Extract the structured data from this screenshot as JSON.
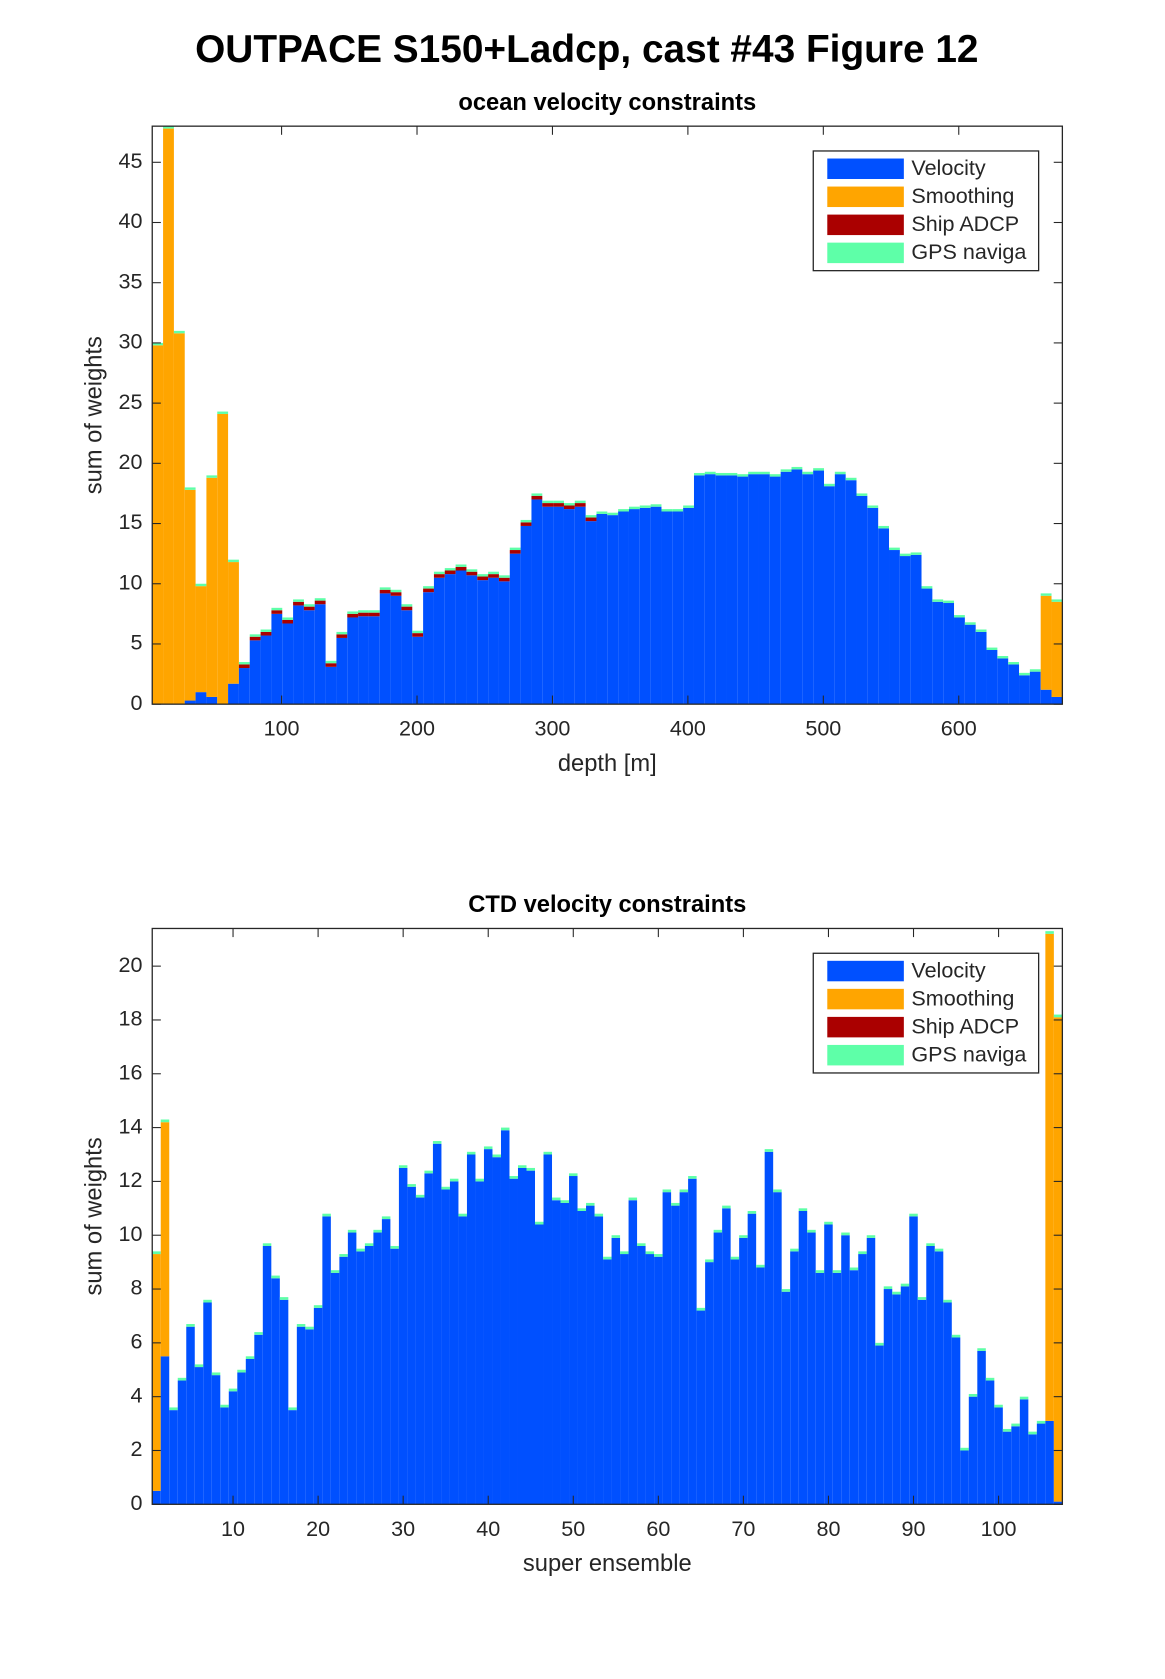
{
  "title": "OUTPACE S150+Ladcp, cast #43  Figure 12",
  "chart_data": [
    {
      "type": "stacked_bar",
      "title": "ocean velocity constraints",
      "xlabel": "depth [m]",
      "ylabel": "sum of weights",
      "legend": "northeast",
      "xlim": [
        4.5,
        676.5
      ],
      "xticks": [
        100,
        200,
        300,
        400,
        500,
        600
      ],
      "ylim": [
        0,
        48
      ],
      "yticks": [
        0,
        5,
        10,
        15,
        20,
        25,
        30,
        35,
        40,
        45
      ],
      "x": [
        8.5,
        16.5,
        24.5,
        32.5,
        40.5,
        48.5,
        56.5,
        64.5,
        72.5,
        80.5,
        88.5,
        96.5,
        104.5,
        112.5,
        120.5,
        128.5,
        136.5,
        144.5,
        152.5,
        160.5,
        168.5,
        176.5,
        184.5,
        192.5,
        200.5,
        208.5,
        216.5,
        224.5,
        232.5,
        240.5,
        248.5,
        256.5,
        264.5,
        272.5,
        280.5,
        288.5,
        296.5,
        304.5,
        312.5,
        320.5,
        328.5,
        336.5,
        344.5,
        352.5,
        360.5,
        368.5,
        376.5,
        384.5,
        392.5,
        400.5,
        408.5,
        416.5,
        424.5,
        432.5,
        440.5,
        448.5,
        456.5,
        464.5,
        472.5,
        480.5,
        488.5,
        496.5,
        504.5,
        512.5,
        520.5,
        528.5,
        536.5,
        544.5,
        552.5,
        560.5,
        568.5,
        576.5,
        584.5,
        592.5,
        600.5,
        608.5,
        616.5,
        624.5,
        632.5,
        640.5,
        648.5,
        656.5,
        664.5,
        672.5
      ],
      "series": [
        {
          "name": "Velocity",
          "color": "#0050ff",
          "values": [
            0,
            0,
            0,
            0.3,
            1.0,
            0.6,
            0,
            1.7,
            3.0,
            5.3,
            5.7,
            7.5,
            6.7,
            8.2,
            7.8,
            8.3,
            3.1,
            5.5,
            7.2,
            7.3,
            7.3,
            9.2,
            9.0,
            7.8,
            5.6,
            9.3,
            10.5,
            10.8,
            11.1,
            10.7,
            10.3,
            10.5,
            10.2,
            12.5,
            14.8,
            17.0,
            16.4,
            16.4,
            16.2,
            16.4,
            15.2,
            15.8,
            15.7,
            16.0,
            16.2,
            16.3,
            16.4,
            16.0,
            16.0,
            16.3,
            19.0,
            19.1,
            19.0,
            19.0,
            18.9,
            19.1,
            19.1,
            18.9,
            19.3,
            19.5,
            19.1,
            19.4,
            18.1,
            19.1,
            18.6,
            17.3,
            16.3,
            14.6,
            12.8,
            12.3,
            12.4,
            9.6,
            8.5,
            8.4,
            7.2,
            6.6,
            6.0,
            4.5,
            3.8,
            3.3,
            2.4,
            2.7,
            1.2,
            0.6
          ]
        },
        {
          "name": "Smoothing",
          "color": "#ffa500",
          "values": [
            29.8,
            47.8,
            30.8,
            17.5,
            8.8,
            18.2,
            24.1,
            10.1,
            0,
            0,
            0,
            0,
            0,
            0,
            0,
            0,
            0,
            0,
            0,
            0,
            0,
            0,
            0,
            0,
            0,
            0,
            0,
            0,
            0,
            0,
            0,
            0,
            0,
            0,
            0,
            0,
            0,
            0,
            0,
            0,
            0,
            0,
            0,
            0,
            0,
            0,
            0,
            0,
            0,
            0,
            0,
            0,
            0,
            0,
            0,
            0,
            0,
            0,
            0,
            0,
            0,
            0,
            0,
            0,
            0,
            0,
            0,
            0,
            0,
            0,
            0,
            0,
            0,
            0,
            0,
            0,
            0,
            0,
            0,
            0,
            0,
            0,
            7.8,
            7.9
          ]
        },
        {
          "name": "Ship ADCP",
          "color": "#aa0000",
          "values": [
            0,
            0,
            0,
            0,
            0,
            0,
            0,
            0,
            0.3,
            0.3,
            0.3,
            0.3,
            0.3,
            0.3,
            0.3,
            0.3,
            0.3,
            0.3,
            0.3,
            0.3,
            0.3,
            0.3,
            0.3,
            0.3,
            0.3,
            0.3,
            0.3,
            0.3,
            0.3,
            0.3,
            0.3,
            0.3,
            0.3,
            0.3,
            0.3,
            0.3,
            0.3,
            0.3,
            0.3,
            0.3,
            0.3,
            0,
            0,
            0,
            0,
            0,
            0,
            0,
            0,
            0,
            0,
            0,
            0,
            0,
            0,
            0,
            0,
            0,
            0,
            0,
            0,
            0,
            0,
            0,
            0,
            0,
            0,
            0,
            0,
            0,
            0,
            0,
            0,
            0,
            0,
            0,
            0,
            0,
            0,
            0,
            0,
            0,
            0,
            0
          ]
        },
        {
          "name": "GPS naviga",
          "color": "#5effa8",
          "values": [
            0.2,
            0.2,
            0.2,
            0.2,
            0.2,
            0.2,
            0.2,
            0.2,
            0.2,
            0.2,
            0.2,
            0.2,
            0.2,
            0.2,
            0.2,
            0.2,
            0.2,
            0.2,
            0.2,
            0.2,
            0.2,
            0.2,
            0.2,
            0.2,
            0.2,
            0.2,
            0.2,
            0.2,
            0.2,
            0.2,
            0.2,
            0.2,
            0.2,
            0.2,
            0.2,
            0.2,
            0.2,
            0.2,
            0.2,
            0.2,
            0.2,
            0.2,
            0.2,
            0.2,
            0.2,
            0.2,
            0.2,
            0.2,
            0.2,
            0.2,
            0.2,
            0.2,
            0.2,
            0.2,
            0.2,
            0.2,
            0.2,
            0.2,
            0.2,
            0.2,
            0.2,
            0.2,
            0.2,
            0.2,
            0.2,
            0.2,
            0.2,
            0.2,
            0.2,
            0.2,
            0.2,
            0.2,
            0.2,
            0.2,
            0.2,
            0.2,
            0.2,
            0.2,
            0.2,
            0.2,
            0.2,
            0.2,
            0.2,
            0.2
          ]
        }
      ]
    },
    {
      "type": "stacked_bar",
      "title": "CTD velocity constraints",
      "xlabel": "super ensemble",
      "ylabel": "sum of weights",
      "legend": "northeast",
      "xlim": [
        0.5,
        107.5
      ],
      "xticks": [
        10,
        20,
        30,
        40,
        50,
        60,
        70,
        80,
        90,
        100
      ],
      "ylim": [
        0,
        21.4
      ],
      "yticks": [
        0,
        2,
        4,
        6,
        8,
        10,
        12,
        14,
        16,
        18,
        20
      ],
      "x": [
        1,
        2,
        3,
        4,
        5,
        6,
        7,
        8,
        9,
        10,
        11,
        12,
        13,
        14,
        15,
        16,
        17,
        18,
        19,
        20,
        21,
        22,
        23,
        24,
        25,
        26,
        27,
        28,
        29,
        30,
        31,
        32,
        33,
        34,
        35,
        36,
        37,
        38,
        39,
        40,
        41,
        42,
        43,
        44,
        45,
        46,
        47,
        48,
        49,
        50,
        51,
        52,
        53,
        54,
        55,
        56,
        57,
        58,
        59,
        60,
        61,
        62,
        63,
        64,
        65,
        66,
        67,
        68,
        69,
        70,
        71,
        72,
        73,
        74,
        75,
        76,
        77,
        78,
        79,
        80,
        81,
        82,
        83,
        84,
        85,
        86,
        87,
        88,
        89,
        90,
        91,
        92,
        93,
        94,
        95,
        96,
        97,
        98,
        99,
        100,
        101,
        102,
        103,
        104,
        105,
        106,
        107
      ],
      "series": [
        {
          "name": "Velocity",
          "color": "#0050ff",
          "values": [
            0.5,
            5.5,
            3.5,
            4.6,
            6.6,
            5.1,
            7.5,
            4.8,
            3.6,
            4.2,
            4.9,
            5.4,
            6.3,
            9.6,
            8.4,
            7.6,
            3.5,
            6.6,
            6.5,
            7.3,
            10.7,
            8.6,
            9.2,
            10.1,
            9.4,
            9.6,
            10.1,
            10.6,
            9.5,
            12.5,
            11.8,
            11.4,
            12.3,
            13.4,
            11.7,
            12.0,
            10.7,
            13.0,
            12.0,
            13.2,
            12.9,
            13.9,
            12.1,
            12.5,
            12.4,
            10.4,
            13.0,
            11.3,
            11.2,
            12.2,
            10.9,
            11.1,
            10.7,
            9.1,
            9.9,
            9.3,
            11.3,
            9.6,
            9.3,
            9.2,
            11.6,
            11.1,
            11.6,
            12.1,
            7.2,
            9.0,
            10.1,
            11.0,
            9.1,
            9.9,
            10.8,
            8.8,
            13.1,
            11.6,
            7.9,
            9.4,
            10.9,
            10.1,
            8.6,
            10.4,
            8.6,
            10.0,
            8.7,
            9.3,
            9.9,
            5.9,
            8.0,
            7.8,
            8.1,
            10.7,
            7.6,
            9.6,
            9.4,
            7.5,
            6.2,
            2.0,
            4.0,
            5.7,
            4.6,
            3.6,
            2.7,
            2.9,
            3.9,
            2.6,
            3.0,
            3.1,
            0.1
          ]
        },
        {
          "name": "Smoothing",
          "color": "#ffa500",
          "values": [
            8.8,
            8.7,
            0,
            0,
            0,
            0,
            0,
            0,
            0,
            0,
            0,
            0,
            0,
            0,
            0,
            0,
            0,
            0,
            0,
            0,
            0,
            0,
            0,
            0,
            0,
            0,
            0,
            0,
            0,
            0,
            0,
            0,
            0,
            0,
            0,
            0,
            0,
            0,
            0,
            0,
            0,
            0,
            0,
            0,
            0,
            0,
            0,
            0,
            0,
            0,
            0,
            0,
            0,
            0,
            0,
            0,
            0,
            0,
            0,
            0,
            0,
            0,
            0,
            0,
            0,
            0,
            0,
            0,
            0,
            0,
            0,
            0,
            0,
            0,
            0,
            0,
            0,
            0,
            0,
            0,
            0,
            0,
            0,
            0,
            0,
            0,
            0,
            0,
            0,
            0,
            0,
            0,
            0,
            0,
            0,
            0,
            0,
            0,
            0,
            0,
            0,
            0,
            0,
            0,
            0,
            18.1,
            18.0
          ]
        },
        {
          "name": "Ship ADCP",
          "color": "#aa0000",
          "values": [
            0,
            0,
            0,
            0,
            0,
            0,
            0,
            0,
            0,
            0,
            0,
            0,
            0,
            0,
            0,
            0,
            0,
            0,
            0,
            0,
            0,
            0,
            0,
            0,
            0,
            0,
            0,
            0,
            0,
            0,
            0,
            0,
            0,
            0,
            0,
            0,
            0,
            0,
            0,
            0,
            0,
            0,
            0,
            0,
            0,
            0,
            0,
            0,
            0,
            0,
            0,
            0,
            0,
            0,
            0,
            0,
            0,
            0,
            0,
            0,
            0,
            0,
            0,
            0,
            0,
            0,
            0,
            0,
            0,
            0,
            0,
            0,
            0,
            0,
            0,
            0,
            0,
            0,
            0,
            0,
            0,
            0,
            0,
            0,
            0,
            0,
            0,
            0,
            0,
            0,
            0,
            0,
            0,
            0,
            0,
            0,
            0,
            0,
            0,
            0,
            0,
            0,
            0,
            0,
            0,
            0,
            0
          ]
        },
        {
          "name": "GPS naviga",
          "color": "#5effa8",
          "values": [
            0.1,
            0.1,
            0.1,
            0.1,
            0.1,
            0.1,
            0.1,
            0.1,
            0.1,
            0.1,
            0.1,
            0.1,
            0.1,
            0.1,
            0.1,
            0.1,
            0.1,
            0.1,
            0.1,
            0.1,
            0.1,
            0.1,
            0.1,
            0.1,
            0.1,
            0.1,
            0.1,
            0.1,
            0.1,
            0.1,
            0.1,
            0.1,
            0.1,
            0.1,
            0.1,
            0.1,
            0.1,
            0.1,
            0.1,
            0.1,
            0.1,
            0.1,
            0.1,
            0.1,
            0.1,
            0.1,
            0.1,
            0.1,
            0.1,
            0.1,
            0.1,
            0.1,
            0.1,
            0.1,
            0.1,
            0.1,
            0.1,
            0.1,
            0.1,
            0.1,
            0.1,
            0.1,
            0.1,
            0.1,
            0.1,
            0.1,
            0.1,
            0.1,
            0.1,
            0.1,
            0.1,
            0.1,
            0.1,
            0.1,
            0.1,
            0.1,
            0.1,
            0.1,
            0.1,
            0.1,
            0.1,
            0.1,
            0.1,
            0.1,
            0.1,
            0.1,
            0.1,
            0.1,
            0.1,
            0.1,
            0.1,
            0.1,
            0.1,
            0.1,
            0.1,
            0.1,
            0.1,
            0.1,
            0.1,
            0.1,
            0.1,
            0.1,
            0.1,
            0.1,
            0.1,
            0.1,
            0.1
          ]
        }
      ]
    }
  ]
}
